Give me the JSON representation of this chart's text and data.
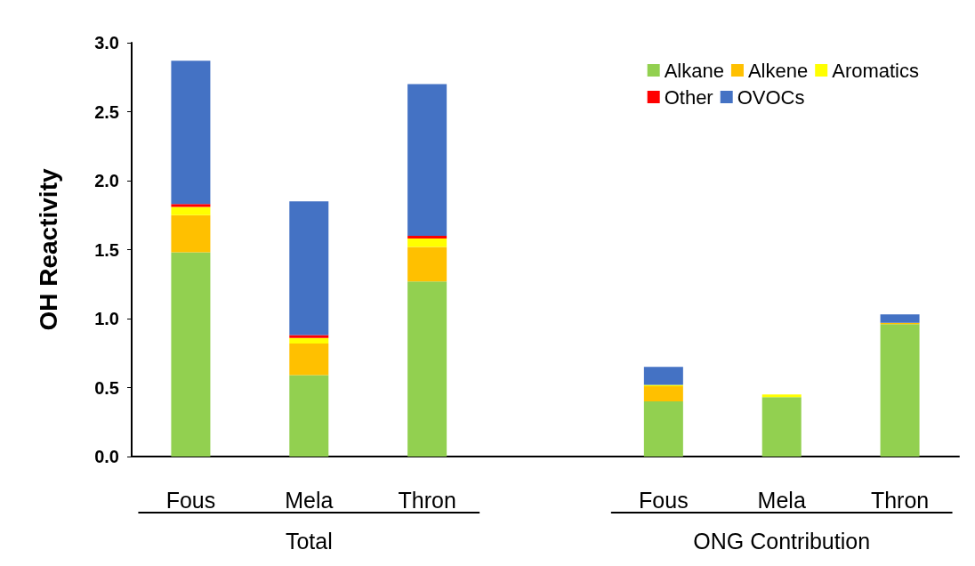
{
  "chart_data": {
    "type": "bar",
    "stacked": true,
    "ylabel": "OH Reactivity",
    "categories": [
      "Fous",
      "Mela",
      "Thron",
      null,
      "Fous",
      "Mela",
      "Thron"
    ],
    "series": [
      {
        "name": "Alkane",
        "color": "#92d050",
        "values": [
          1.48,
          0.59,
          1.27,
          null,
          0.4,
          0.43,
          0.96
        ]
      },
      {
        "name": "Alkene",
        "color": "#ffc000",
        "values": [
          0.27,
          0.23,
          0.25,
          null,
          0.11,
          0,
          0.01
        ]
      },
      {
        "name": "Aromatics",
        "color": "#ffff00",
        "values": [
          0.06,
          0.04,
          0.06,
          null,
          0.01,
          0.02,
          0
        ]
      },
      {
        "name": "Other",
        "color": "#ff0000",
        "values": [
          0.02,
          0.02,
          0.02,
          null,
          0,
          0,
          0
        ]
      },
      {
        "name": "OVOCs",
        "color": "#4472c4",
        "values": [
          1.04,
          0.97,
          1.1,
          null,
          0.13,
          0,
          0.06
        ]
      }
    ],
    "ylim": [
      0,
      3
    ],
    "yticks": [
      {
        "value": 0,
        "label": "0.0"
      },
      0.5,
      {
        "value": 1,
        "label": "1.0"
      },
      1.5,
      {
        "value": 2,
        "label": "2.0"
      },
      2.5,
      {
        "value": 3,
        "label": "3.0"
      }
    ],
    "grid": false,
    "legend": "top right",
    "annotations": [
      "Total",
      "ONG Contribution"
    ]
  }
}
